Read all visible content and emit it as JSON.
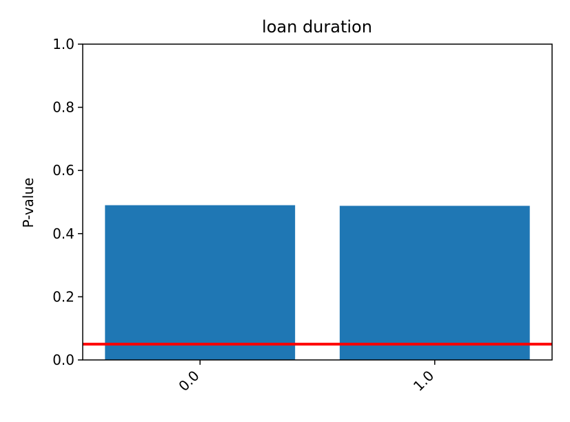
{
  "chart_data": {
    "type": "bar",
    "title": "loan duration",
    "xlabel": "",
    "ylabel": "P-value",
    "categories": [
      "0.0",
      "1.0"
    ],
    "values": [
      0.49,
      0.488
    ],
    "ylim": [
      0,
      1
    ],
    "yticks": [
      "0.0",
      "0.2",
      "0.4",
      "0.6",
      "0.8",
      "1.0"
    ],
    "bar_color": "#1f77b4",
    "reference_line": {
      "y": 0.05,
      "color": "#ff0000"
    },
    "grid": false,
    "legend": "none"
  }
}
